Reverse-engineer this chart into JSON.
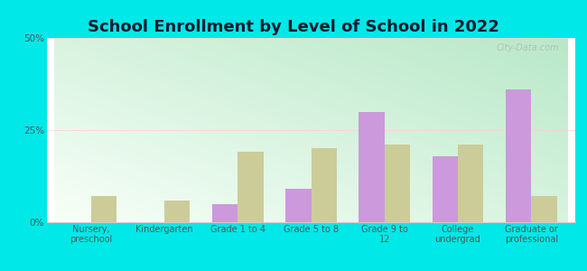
{
  "title": "School Enrollment by Level of School in 2022",
  "categories": [
    "Nursery,\npreschool",
    "Kindergarten",
    "Grade 1 to 4",
    "Grade 5 to 8",
    "Grade 9 to\n12",
    "College\nundergrad",
    "Graduate or\nprofessional"
  ],
  "zip_values": [
    0.0,
    0.0,
    5.0,
    9.0,
    30.0,
    18.0,
    36.0
  ],
  "pa_values": [
    7.0,
    6.0,
    19.0,
    20.0,
    21.0,
    21.0,
    7.0
  ],
  "zip_color": "#cc99dd",
  "pa_color": "#cccc99",
  "background_outer": "#00e8e8",
  "background_plot_tl": "#b8e8c8",
  "background_plot_br": "#f8fff8",
  "ylim": [
    0,
    50
  ],
  "yticks": [
    0,
    25,
    50
  ],
  "ytick_labels": [
    "0%",
    "25%",
    "50%"
  ],
  "title_fontsize": 13,
  "watermark": "City-Data.com",
  "bar_width": 0.35
}
